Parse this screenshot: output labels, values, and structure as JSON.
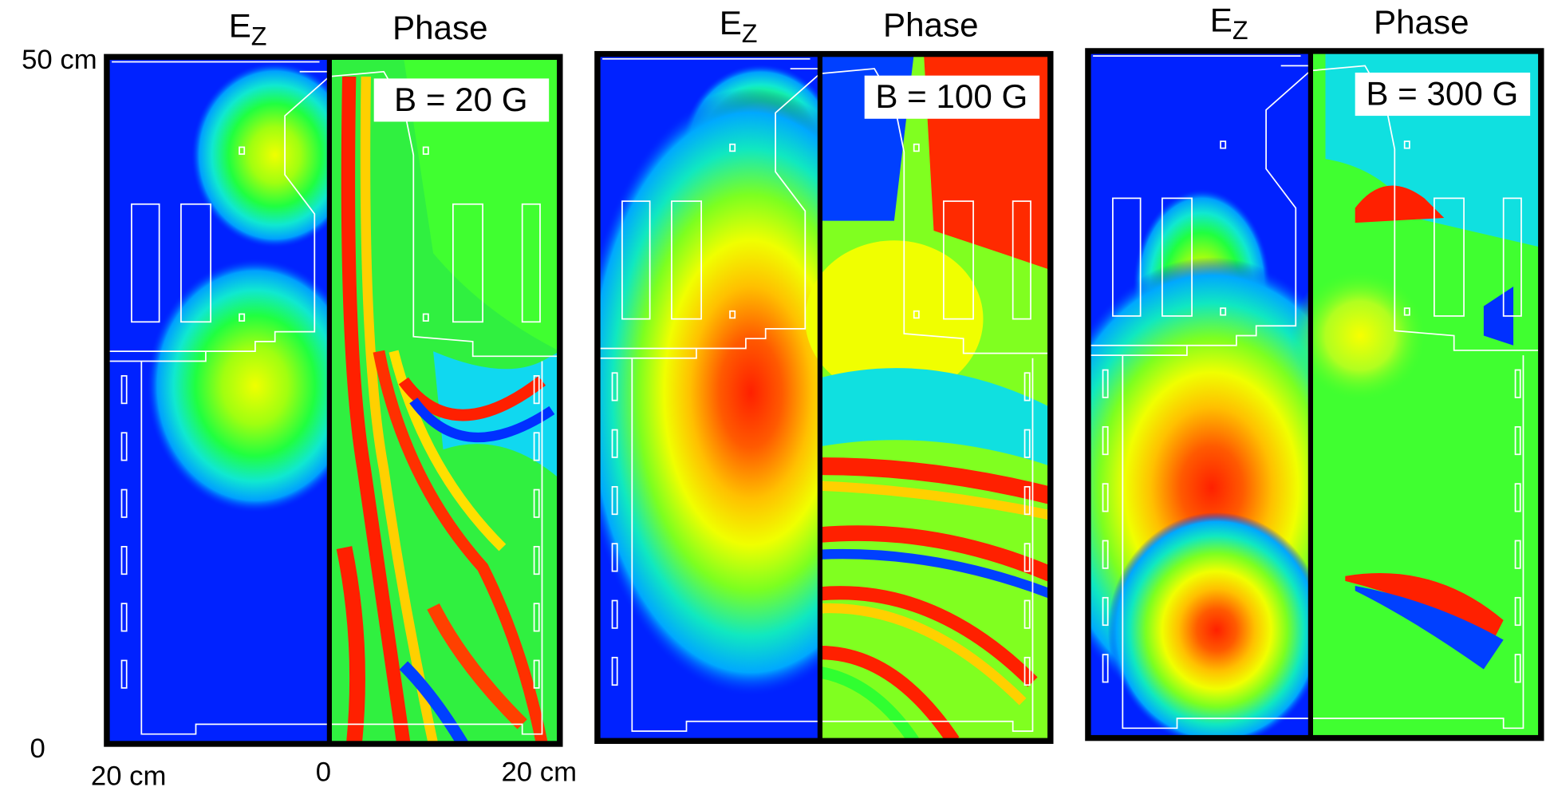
{
  "axis": {
    "y_top": "50 cm",
    "y_bottom": "0",
    "x_left": "20 cm",
    "x_mid": "0",
    "x_right": "20 cm"
  },
  "panels": [
    {
      "ez_label": "E",
      "ez_sub": "Z",
      "phase_label": "Phase",
      "field_label": "B = 20 G"
    },
    {
      "ez_label": "E",
      "ez_sub": "Z",
      "phase_label": "Phase",
      "field_label": "B = 100 G"
    },
    {
      "ez_label": "E",
      "ez_sub": "Z",
      "phase_label": "Phase",
      "field_label": "B = 300 G"
    }
  ]
}
